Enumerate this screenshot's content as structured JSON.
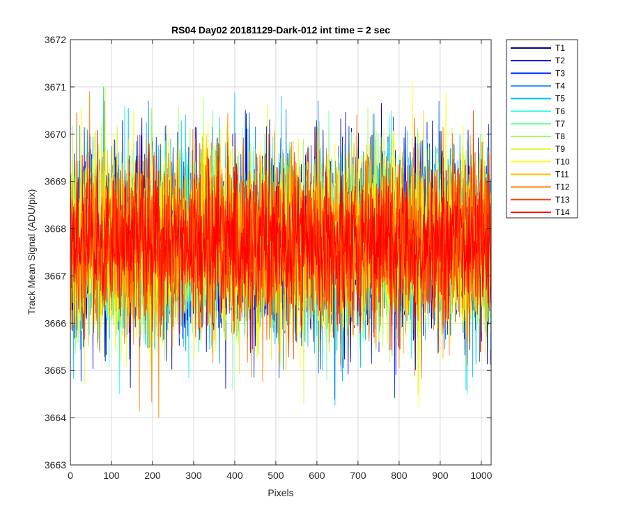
{
  "chart_data": {
    "type": "line",
    "title": "RS04 Day02 20181129-Dark-012 int time = 2 sec",
    "xlabel": "Pixels",
    "ylabel": "Track Mean Signal (ADU/pix)",
    "xlim": [
      0,
      1024
    ],
    "ylim": [
      3663,
      3672
    ],
    "xticks": [
      0,
      100,
      200,
      300,
      400,
      500,
      600,
      700,
      800,
      900,
      1000
    ],
    "yticks": [
      3663,
      3664,
      3665,
      3666,
      3667,
      3668,
      3669,
      3670,
      3671,
      3672
    ],
    "grid": true,
    "legend_position": "outside-top-right",
    "n_points": 1024,
    "series": [
      {
        "name": "T1",
        "color": "#00008f",
        "mean": 3667.7,
        "min": 3664.1,
        "max": 3670.5
      },
      {
        "name": "T2",
        "color": "#0000e0",
        "mean": 3667.7,
        "min": 3664.3,
        "max": 3670.9
      },
      {
        "name": "T3",
        "color": "#0030ff",
        "mean": 3667.7,
        "min": 3664.4,
        "max": 3670.7
      },
      {
        "name": "T4",
        "color": "#0080ff",
        "mean": 3667.7,
        "min": 3663.6,
        "max": 3670.7
      },
      {
        "name": "T5",
        "color": "#00c0ff",
        "mean": 3667.7,
        "min": 3664.1,
        "max": 3671.0
      },
      {
        "name": "T6",
        "color": "#20ffe0",
        "mean": 3667.7,
        "min": 3664.5,
        "max": 3670.6
      },
      {
        "name": "T7",
        "color": "#70ffa0",
        "mean": 3667.7,
        "min": 3664.6,
        "max": 3670.5
      },
      {
        "name": "T8",
        "color": "#a0ff60",
        "mean": 3667.7,
        "min": 3664.6,
        "max": 3671.2
      },
      {
        "name": "T9",
        "color": "#d0ff30",
        "mean": 3667.7,
        "min": 3664.3,
        "max": 3670.6
      },
      {
        "name": "T10",
        "color": "#ffff00",
        "mean": 3667.7,
        "min": 3664.2,
        "max": 3671.1
      },
      {
        "name": "T11",
        "color": "#ffc000",
        "mean": 3667.7,
        "min": 3664.6,
        "max": 3670.5
      },
      {
        "name": "T12",
        "color": "#ff8000",
        "mean": 3667.7,
        "min": 3664.0,
        "max": 3670.9
      },
      {
        "name": "T13",
        "color": "#ff4000",
        "mean": 3667.7,
        "min": 3664.3,
        "max": 3670.5
      },
      {
        "name": "T14",
        "color": "#ff0000",
        "mean": 3667.7,
        "min": 3665.2,
        "max": 3671.3
      }
    ]
  }
}
